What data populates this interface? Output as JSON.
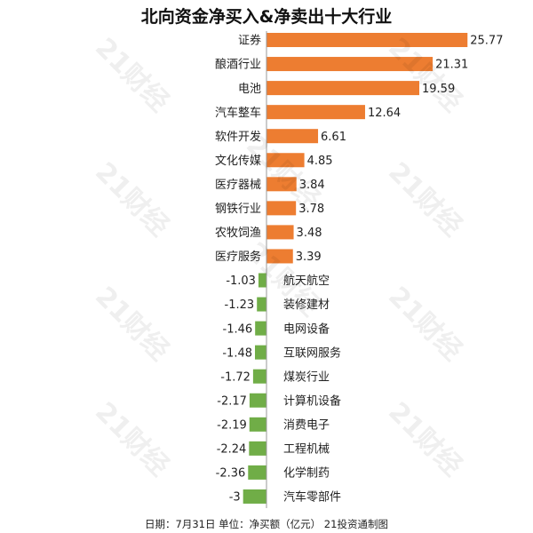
{
  "page": {
    "title": "北向资金净买入&净卖出十大行业",
    "footer": "日期：7月31日 单位：净买额（亿元） 21投资通制图",
    "watermark": "21财经"
  },
  "colors": {
    "positive": "#ED7D31",
    "negative": "#70AD47",
    "axis": "#999999"
  },
  "chart_data": {
    "type": "bar",
    "orientation": "horizontal",
    "title": "北向资金净买入&净卖出十大行业",
    "categories": [
      "证券",
      "酿酒行业",
      "电池",
      "汽车整车",
      "软件开发",
      "文化传媒",
      "医疗器械",
      "钢铁行业",
      "农牧饲渔",
      "医疗服务",
      "航天航空",
      "装修建材",
      "电网设备",
      "互联网服务",
      "煤炭行业",
      "计算机设备",
      "消费电子",
      "工程机械",
      "化学制药",
      "汽车零部件"
    ],
    "values": [
      25.77,
      21.31,
      19.59,
      12.64,
      6.61,
      4.85,
      3.84,
      3.78,
      3.48,
      3.39,
      -1.03,
      -1.23,
      -1.46,
      -1.48,
      -1.72,
      -2.17,
      -2.19,
      -2.24,
      -2.36,
      -3
    ],
    "labels": [
      "25.77",
      "21.31",
      "19.59",
      "12.64",
      "6.61",
      "4.85",
      "3.84",
      "3.78",
      "3.48",
      "3.39",
      "-1.03",
      "-1.23",
      "-1.46",
      "-1.48",
      "-1.72",
      "-2.17",
      "-2.19",
      "-2.24",
      "-2.36",
      "-3"
    ],
    "unit": "亿元"
  }
}
